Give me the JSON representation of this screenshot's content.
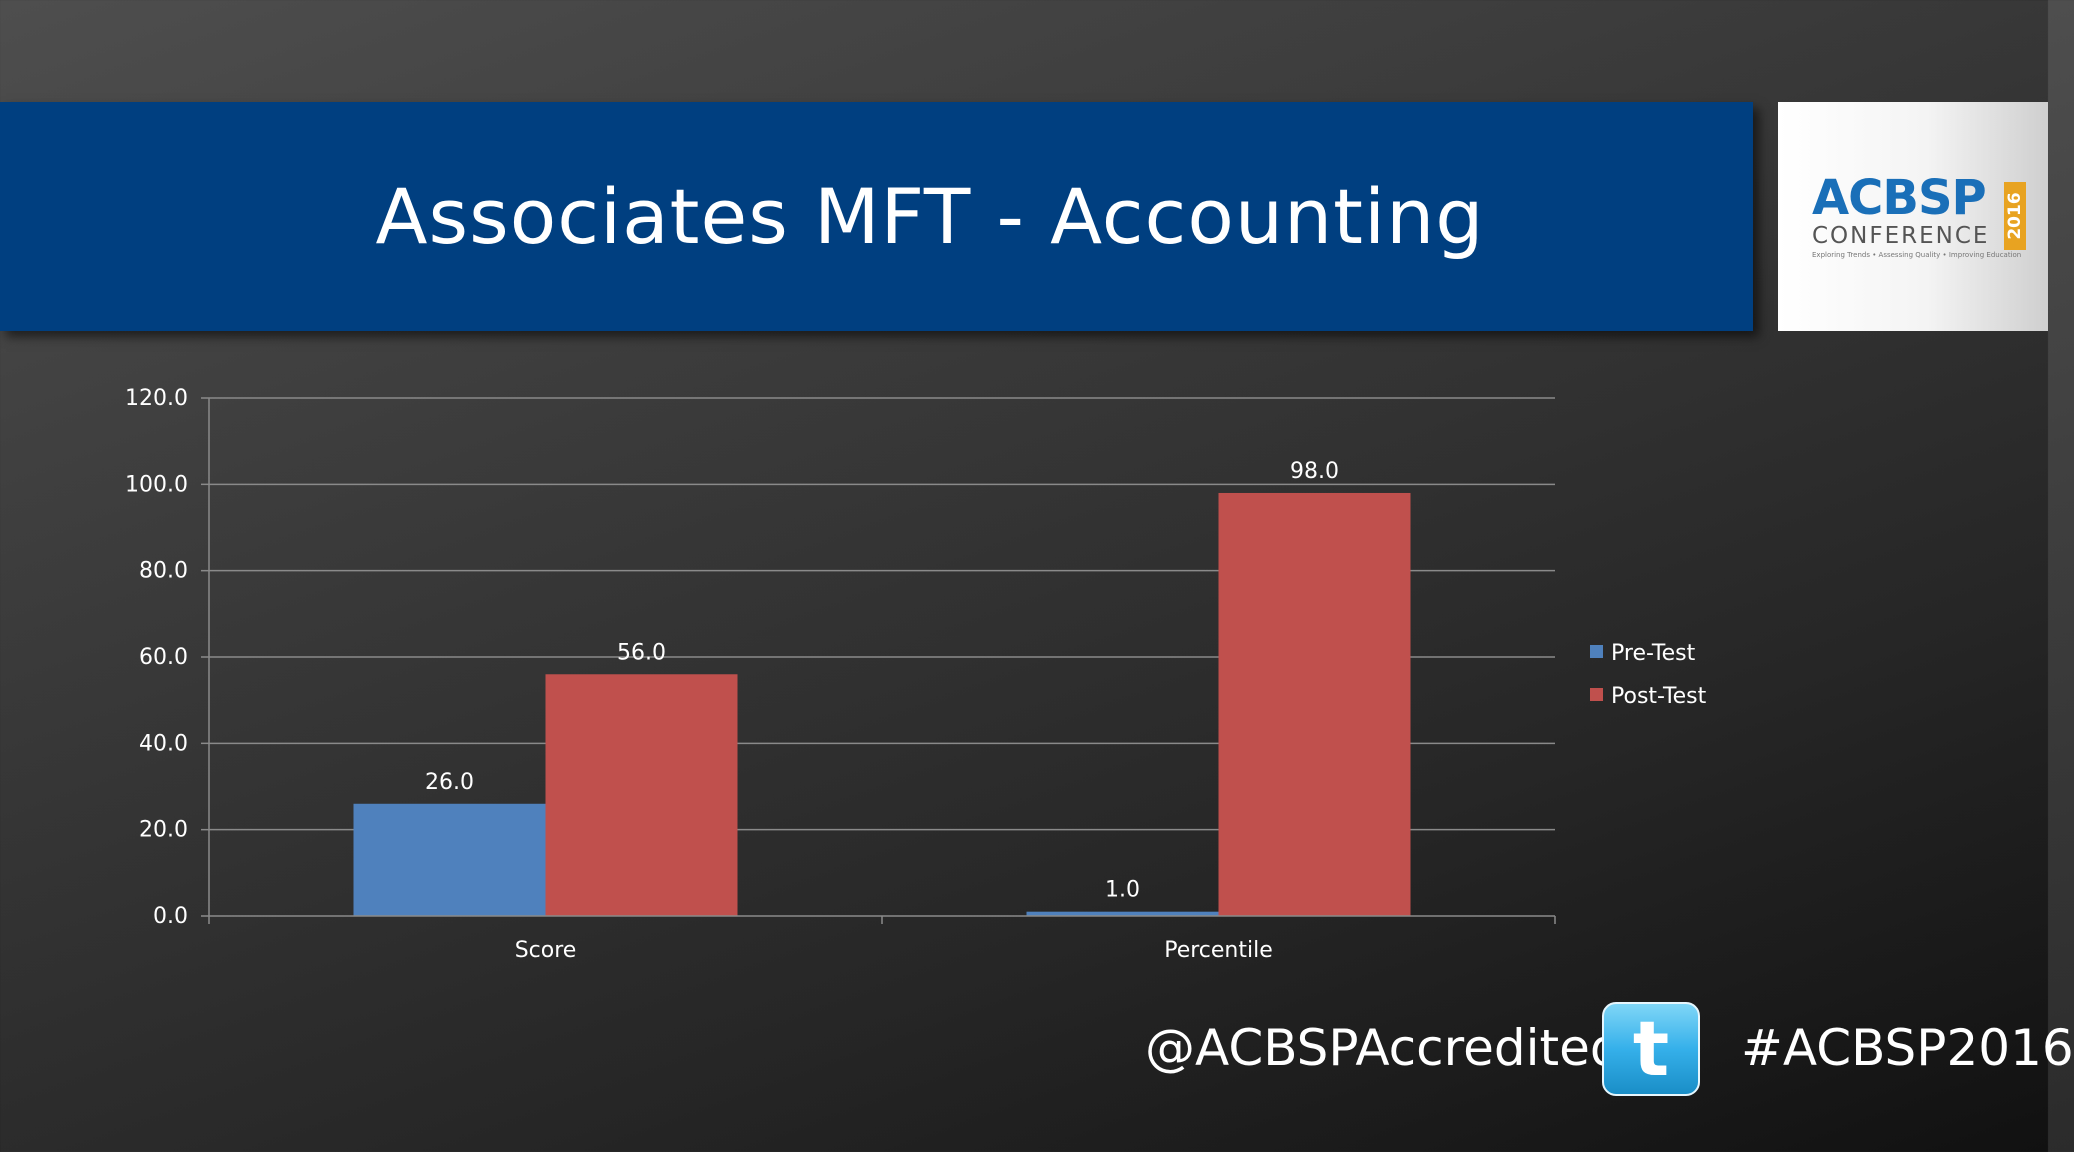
{
  "slide": {
    "title": "Associates MFT - Accounting"
  },
  "logo": {
    "brand": "ACBSP",
    "subtitle": "CONFERENCE",
    "year": "2016",
    "tagline": "Exploring Trends • Assessing Quality • Improving Education"
  },
  "footer": {
    "handle": "@ACBSPAccredited",
    "hashtag": "#ACBSP2016",
    "icon": "twitter-bird-icon"
  },
  "colors": {
    "title_bar": "#003f80",
    "pre_test": "#4f81bd",
    "post_test": "#c0504d",
    "logo_blue": "#1a6fb8",
    "logo_gold": "#e8a321"
  },
  "chart_data": {
    "type": "bar",
    "categories": [
      "Score",
      "Percentile"
    ],
    "series": [
      {
        "name": "Pre-Test",
        "values": [
          26.0,
          1.0
        ]
      },
      {
        "name": "Post-Test",
        "values": [
          56.0,
          98.0
        ]
      }
    ],
    "data_labels": [
      [
        "26.0",
        "1.0"
      ],
      [
        "56.0",
        "98.0"
      ]
    ],
    "y_ticks": [
      "0.0",
      "20.0",
      "40.0",
      "60.0",
      "80.0",
      "100.0",
      "120.0"
    ],
    "ylim": [
      0,
      120
    ],
    "grid": true,
    "legend_position": "right",
    "title": "",
    "xlabel": "",
    "ylabel": ""
  }
}
